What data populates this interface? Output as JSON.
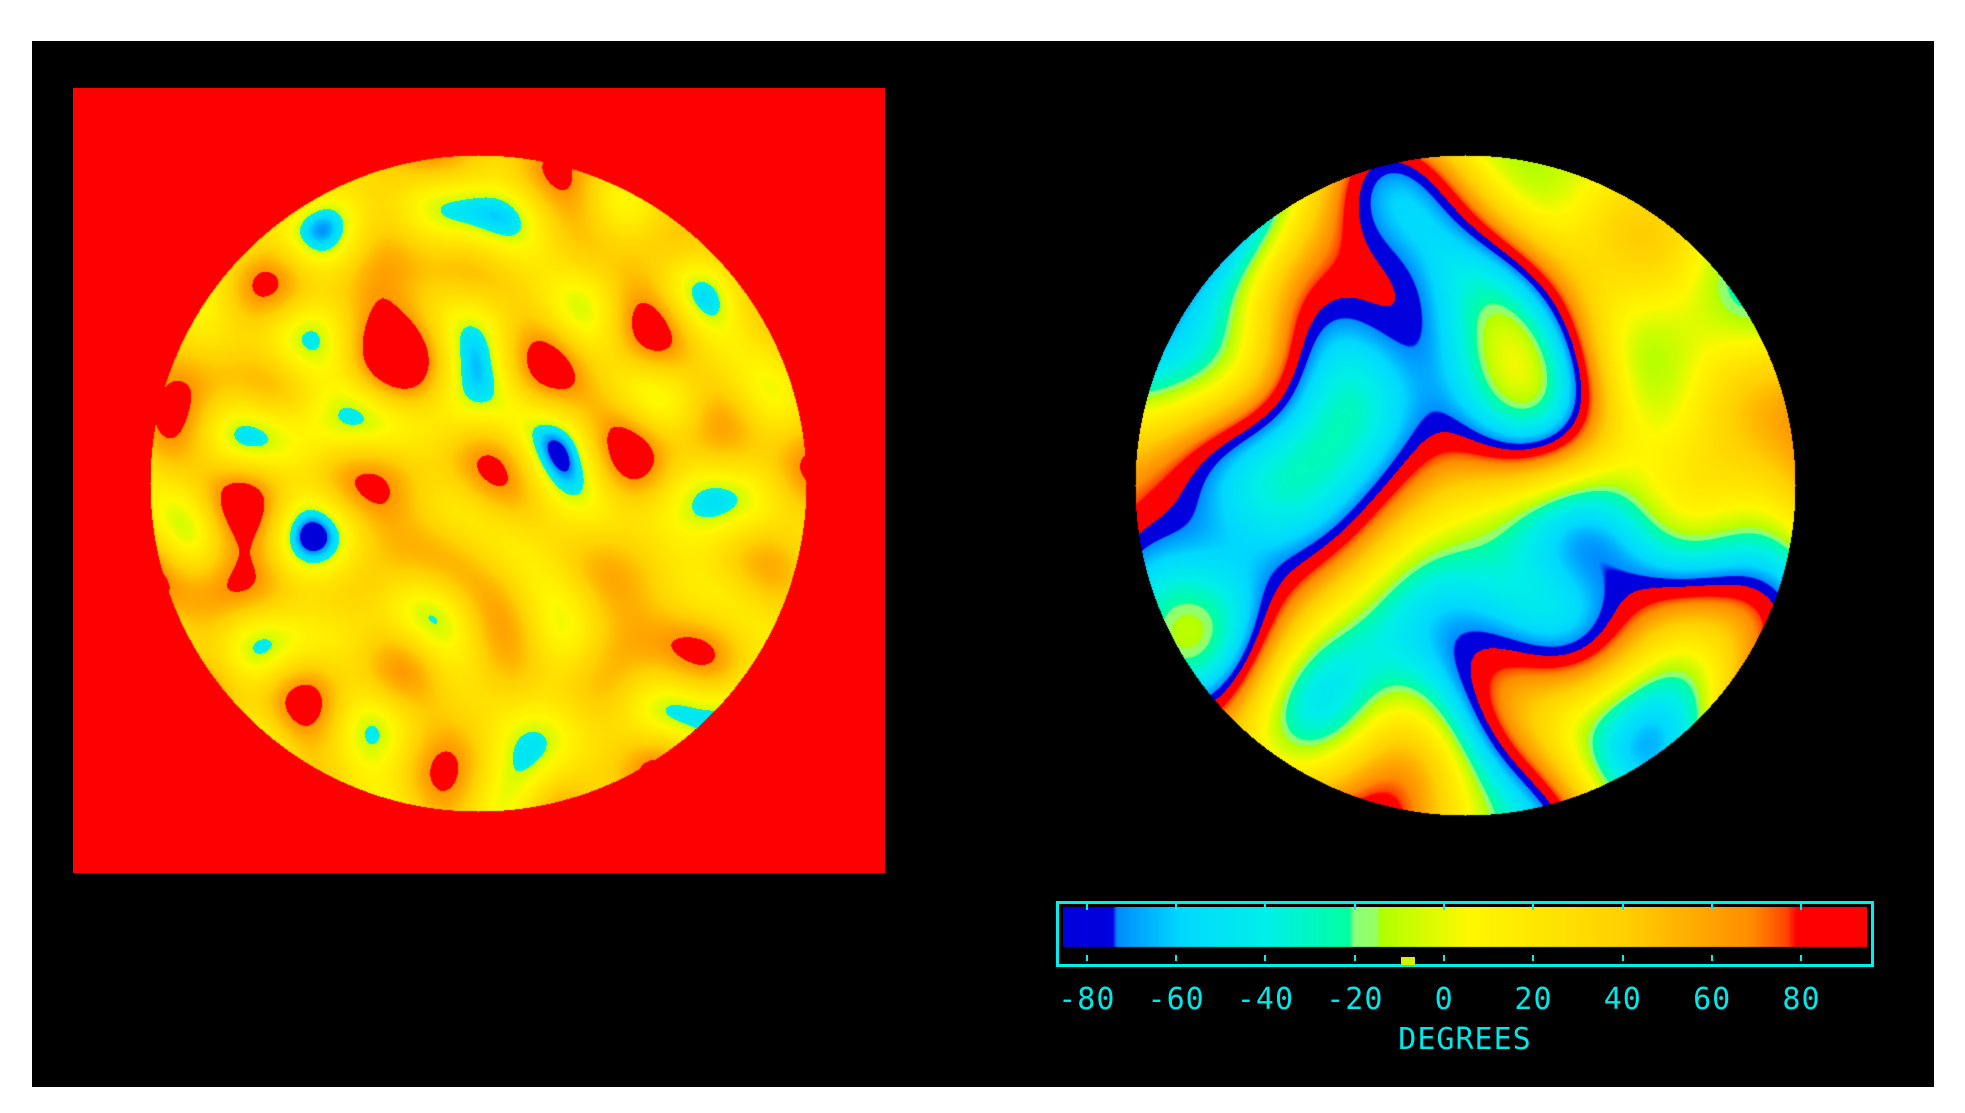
{
  "chart_data": [
    {
      "type": "heatmap",
      "panel": "left",
      "description_shape": "circular field",
      "background_color": "#ff0000"
    },
    {
      "type": "heatmap",
      "panel": "right",
      "description_shape": "circular field"
    }
  ],
  "colorbar": {
    "label": "DEGREES",
    "range": [
      -86,
      94
    ],
    "ticks": [
      -80,
      -60,
      -40,
      -20,
      0,
      20,
      40,
      60,
      80
    ],
    "tick_labels": [
      "-80",
      "-60",
      "-40",
      "-20",
      "0",
      "20",
      "40",
      "60",
      "80"
    ],
    "marker_value": -8,
    "border_color": "#00f0f0",
    "text_color": "#00e8e8"
  }
}
